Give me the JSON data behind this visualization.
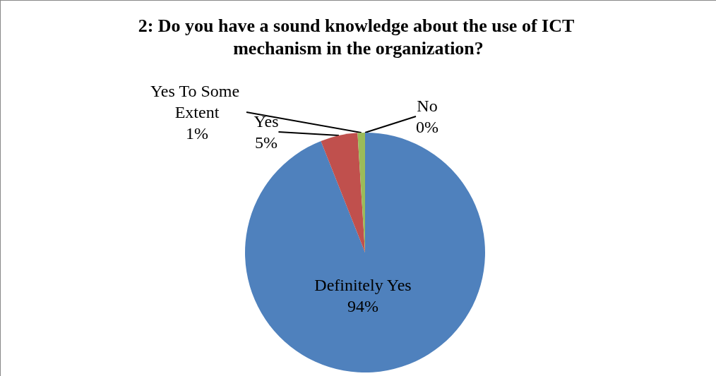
{
  "chart_data": {
    "type": "pie",
    "title": "2: Do you have a sound knowledge about the use of ICT mechanism in the organization?",
    "categories": [
      "Definitely Yes",
      "Yes",
      "Yes To Some Extent",
      "No"
    ],
    "values": [
      94,
      5,
      1,
      0
    ],
    "colors": [
      "#4f81bd",
      "#c0504d",
      "#9bbb59",
      "#8064a2"
    ],
    "value_labels": [
      "94%",
      "5%",
      "1%",
      "0%"
    ],
    "legend": false
  }
}
